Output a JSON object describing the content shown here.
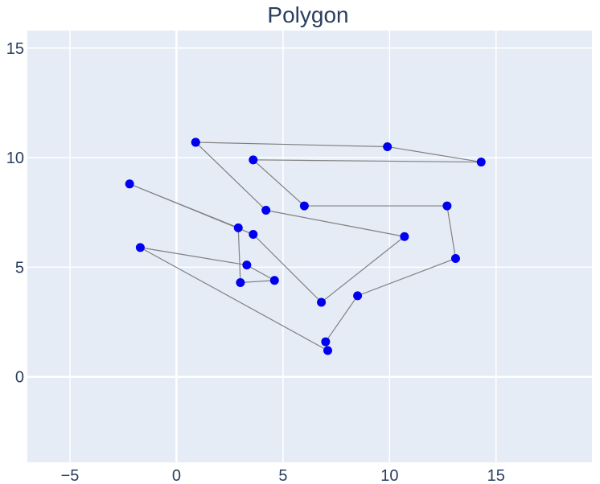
{
  "chart_data": {
    "type": "scatter",
    "mode": "lines+markers",
    "title": "Polygon",
    "xlabel": "",
    "ylabel": "",
    "xlim": [
      -7,
      19.5
    ],
    "ylim": [
      -3.9,
      15.8
    ],
    "x_ticks": [
      -5,
      0,
      5,
      10,
      15
    ],
    "y_ticks": [
      0,
      5,
      10,
      15
    ],
    "x_tick_labels": [
      "−5",
      "0",
      "5",
      "10",
      "15"
    ],
    "y_tick_labels": [
      "0",
      "5",
      "10",
      "15"
    ],
    "grid": true,
    "colors": {
      "plot_background": "#e5ecf6",
      "marker": "#0000ee",
      "line": "#808080",
      "text": "#2a3f5f"
    },
    "series": [
      {
        "x": [
          0.9,
          9.9,
          14.3,
          3.6,
          6.0,
          12.7,
          13.1,
          8.5,
          7.0,
          7.1,
          -1.7,
          3.3,
          4.6,
          3.0,
          2.9,
          -2.2,
          3.6,
          6.8,
          10.7,
          4.2,
          0.9
        ],
        "y": [
          10.7,
          10.5,
          9.8,
          9.9,
          7.8,
          7.8,
          5.4,
          3.7,
          1.6,
          1.2,
          5.9,
          5.1,
          4.4,
          4.3,
          6.8,
          8.8,
          6.5,
          3.4,
          6.4,
          7.6,
          10.7
        ]
      }
    ]
  }
}
